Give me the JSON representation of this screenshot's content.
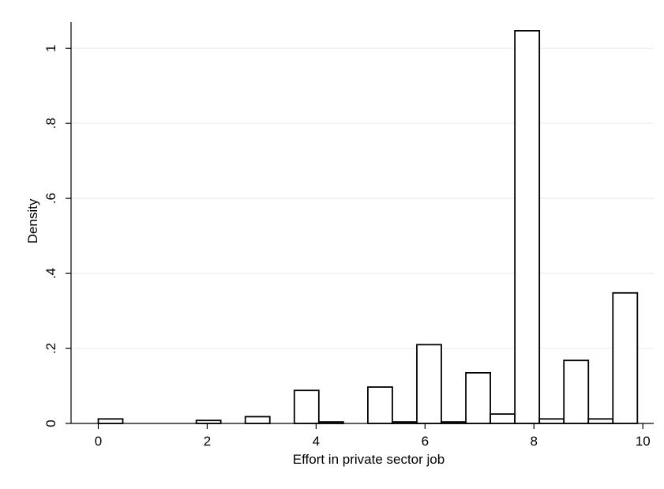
{
  "chart_data": {
    "type": "bar",
    "title": "",
    "xlabel": "Effort in private sector job",
    "ylabel": "Density",
    "xlim": [
      -0.5,
      10.2
    ],
    "ylim": [
      0,
      1.07
    ],
    "xticks": [
      0,
      2,
      4,
      6,
      8,
      10
    ],
    "xtick_labels": [
      "0",
      "2",
      "4",
      "6",
      "8",
      "10"
    ],
    "yticks": [
      0,
      0.2,
      0.4,
      0.6,
      0.8,
      1
    ],
    "ytick_labels": [
      "0",
      ".2",
      ".4",
      ".6",
      ".8",
      "1"
    ],
    "grid": true,
    "legend": "none",
    "colors": {
      "bar_fill": "#ffffff",
      "bar_stroke": "#000000",
      "grid": "#e8eef1",
      "axis": "#000000"
    },
    "bars": [
      {
        "x_start": 0.0,
        "x_end": 0.45,
        "value": 0.012
      },
      {
        "x_start": 1.8,
        "x_end": 2.25,
        "value": 0.008
      },
      {
        "x_start": 2.7,
        "x_end": 3.15,
        "value": 0.018
      },
      {
        "x_start": 3.6,
        "x_end": 4.05,
        "value": 0.088
      },
      {
        "x_start": 4.05,
        "x_end": 4.5,
        "value": 0.004
      },
      {
        "x_start": 4.95,
        "x_end": 5.4,
        "value": 0.097
      },
      {
        "x_start": 5.4,
        "x_end": 5.85,
        "value": 0.004
      },
      {
        "x_start": 5.85,
        "x_end": 6.3,
        "value": 0.21
      },
      {
        "x_start": 6.3,
        "x_end": 6.75,
        "value": 0.004
      },
      {
        "x_start": 6.75,
        "x_end": 7.2,
        "value": 0.135
      },
      {
        "x_start": 7.2,
        "x_end": 7.65,
        "value": 0.025
      },
      {
        "x_start": 7.65,
        "x_end": 8.1,
        "value": 1.047
      },
      {
        "x_start": 8.1,
        "x_end": 8.55,
        "value": 0.012
      },
      {
        "x_start": 8.55,
        "x_end": 9.0,
        "value": 0.168
      },
      {
        "x_start": 9.0,
        "x_end": 9.45,
        "value": 0.012
      },
      {
        "x_start": 9.45,
        "x_end": 9.9,
        "value": 0.348
      }
    ]
  }
}
